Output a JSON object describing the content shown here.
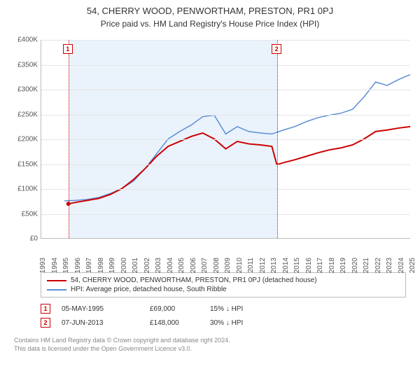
{
  "title": "54, CHERRY WOOD, PENWORTHAM, PRESTON, PR1 0PJ",
  "subtitle": "Price paid vs. HM Land Registry's House Price Index (HPI)",
  "chart": {
    "type": "line",
    "background_color": "#ffffff",
    "grid_color": "#e5e5e5",
    "axis_color": "#bbbbbb",
    "shade_color": "#eaf2fb",
    "label_fontsize": 10,
    "ylim": [
      0,
      400000
    ],
    "ytick_step": 50000,
    "yticks": [
      "£0",
      "£50K",
      "£100K",
      "£150K",
      "£200K",
      "£250K",
      "£300K",
      "£350K",
      "£400K"
    ],
    "xlim": [
      1993,
      2025
    ],
    "xticks": [
      1993,
      1994,
      1995,
      1996,
      1997,
      1998,
      1999,
      2000,
      2001,
      2002,
      2003,
      2004,
      2005,
      2006,
      2007,
      2008,
      2009,
      2010,
      2011,
      2012,
      2013,
      2014,
      2015,
      2016,
      2017,
      2018,
      2019,
      2020,
      2021,
      2022,
      2023,
      2024,
      2025
    ],
    "shade_ranges": [
      [
        1995.35,
        2013.43
      ]
    ],
    "series": [
      {
        "name": "price_paid",
        "label": "54, CHERRY WOOD, PENWORTHAM, PRESTON, PR1 0PJ (detached house)",
        "color": "#cc0000",
        "line_width": 2,
        "points": [
          [
            1995.35,
            69000
          ],
          [
            1996,
            72000
          ],
          [
            1997,
            76000
          ],
          [
            1998,
            80000
          ],
          [
            1999,
            88000
          ],
          [
            2000,
            100000
          ],
          [
            2001,
            118000
          ],
          [
            2002,
            140000
          ],
          [
            2003,
            165000
          ],
          [
            2004,
            185000
          ],
          [
            2005,
            195000
          ],
          [
            2006,
            205000
          ],
          [
            2007,
            212000
          ],
          [
            2008,
            200000
          ],
          [
            2009,
            180000
          ],
          [
            2010,
            195000
          ],
          [
            2011,
            190000
          ],
          [
            2012,
            188000
          ],
          [
            2013,
            185000
          ],
          [
            2013.43,
            148000
          ],
          [
            2014,
            152000
          ],
          [
            2015,
            158000
          ],
          [
            2016,
            165000
          ],
          [
            2017,
            172000
          ],
          [
            2018,
            178000
          ],
          [
            2019,
            182000
          ],
          [
            2020,
            188000
          ],
          [
            2021,
            200000
          ],
          [
            2022,
            215000
          ],
          [
            2023,
            218000
          ],
          [
            2024,
            222000
          ],
          [
            2025,
            225000
          ]
        ]
      },
      {
        "name": "hpi",
        "label": "HPI: Average price, detached house, South Ribble",
        "color": "#5b8fd6",
        "line_width": 1.5,
        "points": [
          [
            1995,
            75000
          ],
          [
            1996,
            76000
          ],
          [
            1997,
            78000
          ],
          [
            1998,
            82000
          ],
          [
            1999,
            90000
          ],
          [
            2000,
            100000
          ],
          [
            2001,
            115000
          ],
          [
            2002,
            140000
          ],
          [
            2003,
            170000
          ],
          [
            2004,
            200000
          ],
          [
            2005,
            215000
          ],
          [
            2006,
            228000
          ],
          [
            2007,
            245000
          ],
          [
            2008,
            248000
          ],
          [
            2009,
            210000
          ],
          [
            2010,
            225000
          ],
          [
            2011,
            215000
          ],
          [
            2012,
            212000
          ],
          [
            2013,
            210000
          ],
          [
            2014,
            218000
          ],
          [
            2015,
            225000
          ],
          [
            2016,
            235000
          ],
          [
            2017,
            243000
          ],
          [
            2018,
            248000
          ],
          [
            2019,
            252000
          ],
          [
            2020,
            260000
          ],
          [
            2021,
            285000
          ],
          [
            2022,
            315000
          ],
          [
            2023,
            308000
          ],
          [
            2024,
            320000
          ],
          [
            2025,
            330000
          ]
        ]
      }
    ],
    "sale_markers": [
      {
        "n": "1",
        "year": 1995.35,
        "color": "#cc0000"
      },
      {
        "n": "2",
        "year": 2013.43,
        "color": "#cc0000"
      }
    ],
    "start_dot": {
      "year": 1995.35,
      "value": 69000,
      "color": "#cc0000",
      "radius": 3
    }
  },
  "legend": {
    "items": [
      {
        "color": "#cc0000",
        "label": "54, CHERRY WOOD, PENWORTHAM, PRESTON, PR1 0PJ (detached house)"
      },
      {
        "color": "#5b8fd6",
        "label": "HPI: Average price, detached house, South Ribble"
      }
    ]
  },
  "sales": [
    {
      "n": "1",
      "color": "#cc0000",
      "date": "05-MAY-1995",
      "price": "£69,000",
      "delta": "15% ↓ HPI"
    },
    {
      "n": "2",
      "color": "#cc0000",
      "date": "07-JUN-2013",
      "price": "£148,000",
      "delta": "30% ↓ HPI"
    }
  ],
  "footer": {
    "line1": "Contains HM Land Registry data © Crown copyright and database right 2024.",
    "line2": "This data is licensed under the Open Government Licence v3.0."
  }
}
